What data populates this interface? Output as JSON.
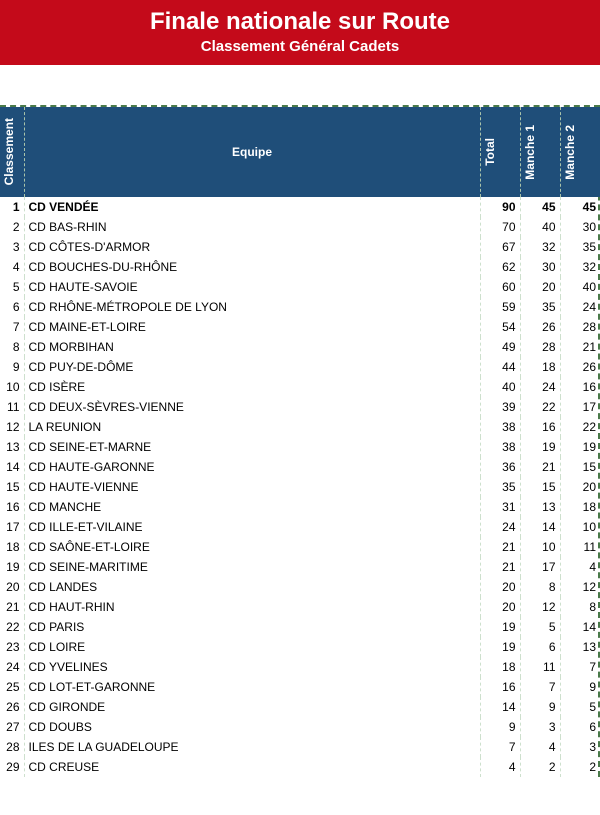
{
  "header": {
    "title": "Finale nationale sur Route",
    "subtitle": "Classement Général Cadets",
    "bg_color": "#c40a1a",
    "text_color": "#ffffff"
  },
  "table": {
    "header_bg": "#1f4e79",
    "header_text": "#ffffff",
    "columns": {
      "rank": "Classement",
      "team": "Equipe",
      "total": "Total",
      "m1": "Manche 1",
      "m2": "Manche 2"
    },
    "bold_first_row": true,
    "rows": [
      {
        "rank": 1,
        "team": "CD VENDÉE",
        "total": 90,
        "m1": 45,
        "m2": 45
      },
      {
        "rank": 2,
        "team": "CD BAS-RHIN",
        "total": 70,
        "m1": 40,
        "m2": 30
      },
      {
        "rank": 3,
        "team": "CD CÔTES-D'ARMOR",
        "total": 67,
        "m1": 32,
        "m2": 35
      },
      {
        "rank": 4,
        "team": "CD BOUCHES-DU-RHÔNE",
        "total": 62,
        "m1": 30,
        "m2": 32
      },
      {
        "rank": 5,
        "team": "CD HAUTE-SAVOIE",
        "total": 60,
        "m1": 20,
        "m2": 40
      },
      {
        "rank": 6,
        "team": "CD RHÔNE-MÉTROPOLE DE LYON",
        "total": 59,
        "m1": 35,
        "m2": 24
      },
      {
        "rank": 7,
        "team": "CD MAINE-ET-LOIRE",
        "total": 54,
        "m1": 26,
        "m2": 28
      },
      {
        "rank": 8,
        "team": "CD MORBIHAN",
        "total": 49,
        "m1": 28,
        "m2": 21
      },
      {
        "rank": 9,
        "team": "CD PUY-DE-DÔME",
        "total": 44,
        "m1": 18,
        "m2": 26
      },
      {
        "rank": 10,
        "team": "CD ISÈRE",
        "total": 40,
        "m1": 24,
        "m2": 16
      },
      {
        "rank": 11,
        "team": "CD DEUX-SÈVRES-VIENNE",
        "total": 39,
        "m1": 22,
        "m2": 17
      },
      {
        "rank": 12,
        "team": "LA REUNION",
        "total": 38,
        "m1": 16,
        "m2": 22
      },
      {
        "rank": 13,
        "team": "CD SEINE-ET-MARNE",
        "total": 38,
        "m1": 19,
        "m2": 19
      },
      {
        "rank": 14,
        "team": "CD HAUTE-GARONNE",
        "total": 36,
        "m1": 21,
        "m2": 15
      },
      {
        "rank": 15,
        "team": "CD HAUTE-VIENNE",
        "total": 35,
        "m1": 15,
        "m2": 20
      },
      {
        "rank": 16,
        "team": "CD MANCHE",
        "total": 31,
        "m1": 13,
        "m2": 18
      },
      {
        "rank": 17,
        "team": "CD ILLE-ET-VILAINE",
        "total": 24,
        "m1": 14,
        "m2": 10
      },
      {
        "rank": 18,
        "team": "CD SAÔNE-ET-LOIRE",
        "total": 21,
        "m1": 10,
        "m2": 11
      },
      {
        "rank": 19,
        "team": "CD SEINE-MARITIME",
        "total": 21,
        "m1": 17,
        "m2": 4
      },
      {
        "rank": 20,
        "team": "CD LANDES",
        "total": 20,
        "m1": 8,
        "m2": 12
      },
      {
        "rank": 21,
        "team": "CD HAUT-RHIN",
        "total": 20,
        "m1": 12,
        "m2": 8
      },
      {
        "rank": 22,
        "team": "CD PARIS",
        "total": 19,
        "m1": 5,
        "m2": 14
      },
      {
        "rank": 23,
        "team": "CD LOIRE",
        "total": 19,
        "m1": 6,
        "m2": 13
      },
      {
        "rank": 24,
        "team": "CD YVELINES",
        "total": 18,
        "m1": 11,
        "m2": 7
      },
      {
        "rank": 25,
        "team": "CD LOT-ET-GARONNE",
        "total": 16,
        "m1": 7,
        "m2": 9
      },
      {
        "rank": 26,
        "team": "CD GIRONDE",
        "total": 14,
        "m1": 9,
        "m2": 5
      },
      {
        "rank": 27,
        "team": "CD DOUBS",
        "total": 9,
        "m1": 3,
        "m2": 6
      },
      {
        "rank": 28,
        "team": "ILES DE LA GUADELOUPE",
        "total": 7,
        "m1": 4,
        "m2": 3
      },
      {
        "rank": 29,
        "team": "CD CREUSE",
        "total": 4,
        "m1": 2,
        "m2": 2
      }
    ]
  }
}
